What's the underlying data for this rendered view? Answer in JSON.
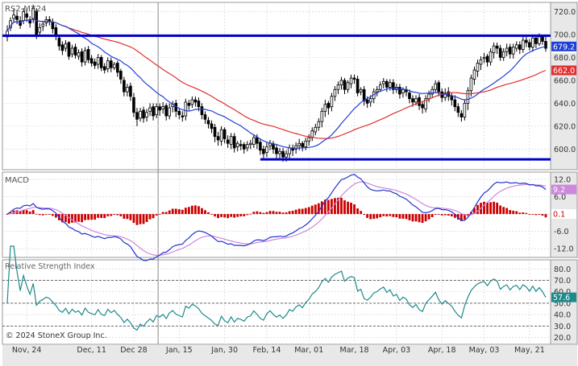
{
  "colors": {
    "background": "#ffffff",
    "axis_panel": "#e8e8e8",
    "grid": "#cfcfcf",
    "frame": "#999999",
    "text": "#333333",
    "candle": "#000000",
    "hline": "#0000cc",
    "ma_fast": "#1f3fd6",
    "ma_slow": "#e03030",
    "macd": "#2233cc",
    "signal": "#cc88dd",
    "hist": "#cc0000",
    "rsi": "#1e8a8a",
    "rsi_refline": "#555555"
  },
  "chart_data": [
    {
      "type": "candlestick",
      "title": "RS2-MX24",
      "ylim": [
        582,
        728
      ],
      "yticks": [
        600,
        620,
        640,
        660,
        680,
        700,
        720
      ],
      "ytick_labels": [
        "600.0",
        "620.0",
        "640.0",
        "660.0",
        "680.0",
        "700.0",
        "720.0"
      ],
      "x_labels": [
        "Nov, 24",
        "Dec, 11",
        "Dec 28",
        "Jan, 15",
        "Jan, 30",
        "Feb, 14",
        "Mar, 01",
        "Mar, 18",
        "Apr, 03",
        "Apr, 18",
        "May, 03",
        "May, 21"
      ],
      "x_label_index": [
        6,
        26,
        39,
        53,
        67,
        80,
        93,
        107,
        120,
        134,
        147,
        161
      ],
      "close": [
        703,
        712,
        717,
        713,
        708,
        720,
        715,
        710,
        723,
        700,
        706,
        709,
        713,
        711,
        705,
        699,
        690,
        686,
        692,
        681,
        688,
        682,
        684,
        676,
        686,
        678,
        675,
        673,
        680,
        671,
        669,
        677,
        671,
        674,
        667,
        661,
        650,
        654,
        646,
        632,
        626,
        633,
        627,
        632,
        636,
        629,
        637,
        634,
        637,
        629,
        636,
        639,
        633,
        630,
        628,
        641,
        638,
        643,
        641,
        637,
        630,
        626,
        622,
        618,
        611,
        608,
        617,
        609,
        605,
        611,
        601,
        605,
        603,
        600,
        604,
        605,
        610,
        605,
        599,
        596,
        602,
        605,
        600,
        596,
        598,
        593,
        596,
        601,
        599,
        603,
        605,
        602,
        607,
        610,
        616,
        619,
        624,
        633,
        639,
        636,
        646,
        652,
        656,
        660,
        652,
        658,
        662,
        661,
        649,
        652,
        642,
        640,
        644,
        650,
        652,
        656,
        659,
        654,
        658,
        652,
        654,
        648,
        652,
        650,
        644,
        641,
        644,
        638,
        636,
        644,
        648,
        652,
        657,
        650,
        645,
        649,
        646,
        643,
        637,
        632,
        628,
        640,
        651,
        662,
        669,
        675,
        678,
        680,
        676,
        685,
        690,
        688,
        680,
        685,
        688,
        683,
        689,
        691,
        687,
        695,
        693,
        689,
        697,
        692,
        698,
        694,
        688
      ],
      "open": [
        698,
        706,
        714,
        716,
        712,
        712,
        718,
        713,
        714,
        720,
        702,
        707,
        710,
        713,
        711,
        706,
        697,
        691,
        688,
        693,
        683,
        689,
        681,
        685,
        676,
        687,
        679,
        676,
        674,
        680,
        672,
        670,
        677,
        671,
        675,
        668,
        660,
        650,
        655,
        645,
        632,
        627,
        634,
        628,
        633,
        637,
        630,
        637,
        635,
        638,
        629,
        637,
        640,
        633,
        629,
        629,
        640,
        639,
        643,
        642,
        637,
        630,
        625,
        622,
        619,
        611,
        607,
        617,
        608,
        604,
        611,
        602,
        604,
        604,
        601,
        604,
        604,
        610,
        606,
        600,
        597,
        603,
        604,
        601,
        596,
        598,
        593,
        596,
        601,
        600,
        603,
        605,
        602,
        607,
        610,
        615,
        619,
        624,
        633,
        640,
        637,
        646,
        652,
        656,
        660,
        652,
        657,
        662,
        661,
        650,
        652,
        643,
        641,
        644,
        650,
        652,
        657,
        659,
        654,
        658,
        652,
        654,
        649,
        652,
        649,
        644,
        641,
        645,
        639,
        635,
        644,
        648,
        652,
        658,
        650,
        645,
        650,
        646,
        643,
        637,
        631,
        628,
        640,
        651,
        661,
        668,
        674,
        679,
        681,
        676,
        684,
        690,
        688,
        680,
        685,
        689,
        683,
        688,
        691,
        687,
        695,
        693,
        689,
        697,
        692,
        698,
        694
      ],
      "high": [
        708,
        715,
        722,
        720,
        716,
        723,
        722,
        716,
        726,
        723,
        710,
        712,
        716,
        716,
        714,
        709,
        700,
        694,
        695,
        694,
        691,
        692,
        687,
        688,
        689,
        690,
        682,
        679,
        683,
        682,
        675,
        680,
        680,
        676,
        677,
        670,
        663,
        657,
        658,
        649,
        636,
        636,
        637,
        635,
        640,
        640,
        640,
        640,
        641,
        640,
        640,
        642,
        643,
        636,
        633,
        644,
        643,
        646,
        646,
        645,
        640,
        633,
        628,
        625,
        622,
        615,
        620,
        619,
        612,
        614,
        614,
        607,
        608,
        606,
        607,
        608,
        613,
        613,
        609,
        603,
        606,
        608,
        607,
        604,
        601,
        601,
        599,
        604,
        604,
        606,
        609,
        607,
        610,
        613,
        619,
        622,
        627,
        636,
        643,
        642,
        649,
        655,
        659,
        663,
        662,
        660,
        665,
        665,
        664,
        654,
        655,
        646,
        647,
        653,
        655,
        659,
        662,
        661,
        661,
        661,
        657,
        657,
        654,
        655,
        652,
        647,
        647,
        648,
        642,
        647,
        651,
        655,
        660,
        660,
        653,
        653,
        654,
        649,
        647,
        640,
        634,
        643,
        654,
        665,
        672,
        678,
        681,
        684,
        683,
        688,
        693,
        693,
        691,
        688,
        692,
        692,
        692,
        694,
        694,
        698,
        698,
        696,
        700,
        699,
        701,
        699,
        698
      ],
      "low": [
        694,
        703,
        711,
        709,
        705,
        709,
        711,
        706,
        710,
        696,
        699,
        703,
        707,
        708,
        701,
        695,
        686,
        682,
        685,
        678,
        680,
        679,
        678,
        672,
        673,
        675,
        672,
        670,
        670,
        668,
        666,
        667,
        667,
        669,
        663,
        657,
        646,
        646,
        642,
        628,
        620,
        624,
        623,
        624,
        629,
        625,
        627,
        629,
        631,
        625,
        626,
        632,
        628,
        626,
        624,
        625,
        634,
        636,
        637,
        633,
        626,
        622,
        618,
        614,
        606,
        603,
        603,
        605,
        601,
        600,
        597,
        598,
        599,
        596,
        598,
        600,
        601,
        600,
        595,
        592,
        593,
        599,
        596,
        592,
        592,
        589,
        589,
        592,
        594,
        596,
        599,
        598,
        599,
        603,
        607,
        612,
        616,
        619,
        628,
        630,
        633,
        642,
        648,
        652,
        648,
        649,
        653,
        657,
        646,
        647,
        638,
        636,
        637,
        640,
        646,
        650,
        653,
        650,
        651,
        648,
        649,
        644,
        645,
        646,
        640,
        637,
        638,
        634,
        631,
        632,
        641,
        645,
        649,
        646,
        641,
        642,
        642,
        638,
        633,
        628,
        624,
        625,
        634,
        646,
        656,
        663,
        669,
        675,
        672,
        673,
        679,
        683,
        677,
        677,
        681,
        679,
        679,
        685,
        683,
        684,
        689,
        686,
        685,
        688,
        690,
        691,
        685
      ],
      "ma_fast_label": "679.2",
      "ma_slow_label": "662.0",
      "last_label": "688.4",
      "resistance_level": 699,
      "support_level": 591
    },
    {
      "type": "line",
      "title": "MACD",
      "ylim": [
        -15,
        14.5
      ],
      "yticks": [
        -12,
        -6,
        0,
        6,
        12
      ],
      "ytick_labels": [
        "-12.0",
        "-6.0",
        "0.0",
        "6.0",
        "12.0"
      ],
      "macd_label": "9.2",
      "hist_label": "0.1"
    },
    {
      "type": "line",
      "title": "Relative Strength Index",
      "ylim": [
        14,
        88
      ],
      "yticks": [
        20,
        30,
        40,
        50,
        60,
        70,
        80
      ],
      "ytick_labels": [
        "20.0",
        "30.0",
        "40.0",
        "50.0",
        "60.0",
        "70.0",
        "80.0"
      ],
      "reference_lines": [
        30,
        50,
        70
      ],
      "rsi_label": "57.6"
    }
  ],
  "footer": {
    "copyright": "© 2024 StoneX Group Inc."
  }
}
